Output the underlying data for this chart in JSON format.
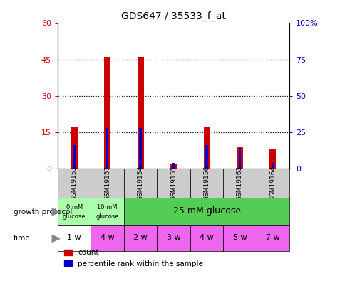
{
  "title": "GDS647 / 35533_f_at",
  "samples": [
    "GSM19153",
    "GSM19157",
    "GSM19154",
    "GSM19155",
    "GSM19156",
    "GSM19163",
    "GSM19164"
  ],
  "count_values": [
    17,
    46,
    46,
    2,
    17,
    9,
    8
  ],
  "percentile_values": [
    16,
    28,
    28,
    4,
    16,
    14,
    4
  ],
  "left_ylim": [
    0,
    60
  ],
  "right_ylim": [
    0,
    100
  ],
  "left_yticks": [
    0,
    15,
    30,
    45,
    60
  ],
  "right_yticks": [
    0,
    25,
    50,
    75,
    100
  ],
  "right_yticklabels": [
    "0",
    "25",
    "50",
    "75",
    "100%"
  ],
  "bar_color": "#cc0000",
  "percentile_color": "#0000cc",
  "growth_protocol_green_dark": "#55cc55",
  "growth_protocol_green_light": "#aaffaa",
  "time_color_pink": "#ee66ee",
  "time_color_white": "#ffffff",
  "sample_bg_color": "#cccccc",
  "legend_count_label": "count",
  "legend_pct_label": "percentile rank within the sample",
  "time_labels": [
    "1 w",
    "4 w",
    "2 w",
    "3 w",
    "4 w",
    "5 w",
    "7 w"
  ],
  "time_colors": [
    "#ffffff",
    "#ee66ee",
    "#ee66ee",
    "#ee66ee",
    "#ee66ee",
    "#ee66ee",
    "#ee66ee"
  ]
}
